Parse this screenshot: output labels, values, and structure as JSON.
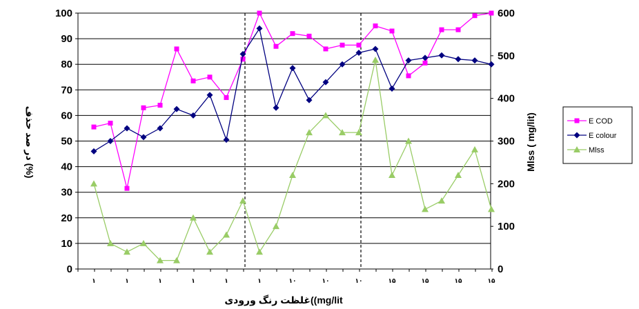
{
  "chart_data": {
    "type": "line",
    "title": "",
    "xlabel": "غلظت رنگ ورودی((mg/lit",
    "ylabel_left": "در صد حذف (%)",
    "ylabel_right": "Mlss ( mg/lit)",
    "ylim_left": [
      0,
      100
    ],
    "ylim_right": [
      0,
      600
    ],
    "yticks_left": [
      "0",
      "10",
      "20",
      "30",
      "40",
      "50",
      "60",
      "70",
      "80",
      "90",
      "100"
    ],
    "yticks_right": [
      "0",
      "100",
      "200",
      "300",
      "400",
      "500",
      "600"
    ],
    "x_tick_labels": [
      "۱",
      "۱",
      "۱",
      "۱",
      "۱",
      "۱",
      "۱۰",
      "۱۰",
      "۱۰",
      "۱۵",
      "۱۵",
      "۱۵",
      "۱۵"
    ],
    "grid": true,
    "legend_position": "right",
    "reference_lines_at_point": [
      10,
      17
    ],
    "series": [
      {
        "name": "E COD",
        "axis": "left",
        "color": "#ff00ff",
        "marker": "square",
        "values": [
          55.5,
          57,
          31.5,
          63,
          64,
          86,
          73.5,
          75,
          67,
          82,
          100,
          87,
          92,
          91,
          86,
          87.5,
          87.5,
          95,
          93,
          75.5,
          80.5,
          93.5,
          93.5,
          99,
          100
        ]
      },
      {
        "name": "E colour",
        "axis": "left",
        "color": "#000080",
        "marker": "diamond",
        "values": [
          46,
          50,
          55,
          51.5,
          55,
          62.5,
          60,
          68,
          50.5,
          84,
          94,
          63,
          78.5,
          66,
          73,
          80,
          84.5,
          86,
          70.5,
          81.5,
          82.5,
          83.5,
          82,
          81.5,
          80
        ]
      },
      {
        "name": "Mlss",
        "axis": "right",
        "color": "#99cc66",
        "marker": "triangle",
        "values": [
          200,
          60,
          40,
          60,
          20,
          20,
          120,
          40,
          80,
          160,
          40,
          100,
          220,
          320,
          360,
          320,
          320,
          490,
          220,
          300,
          140,
          160,
          220,
          280,
          140
        ]
      }
    ]
  }
}
